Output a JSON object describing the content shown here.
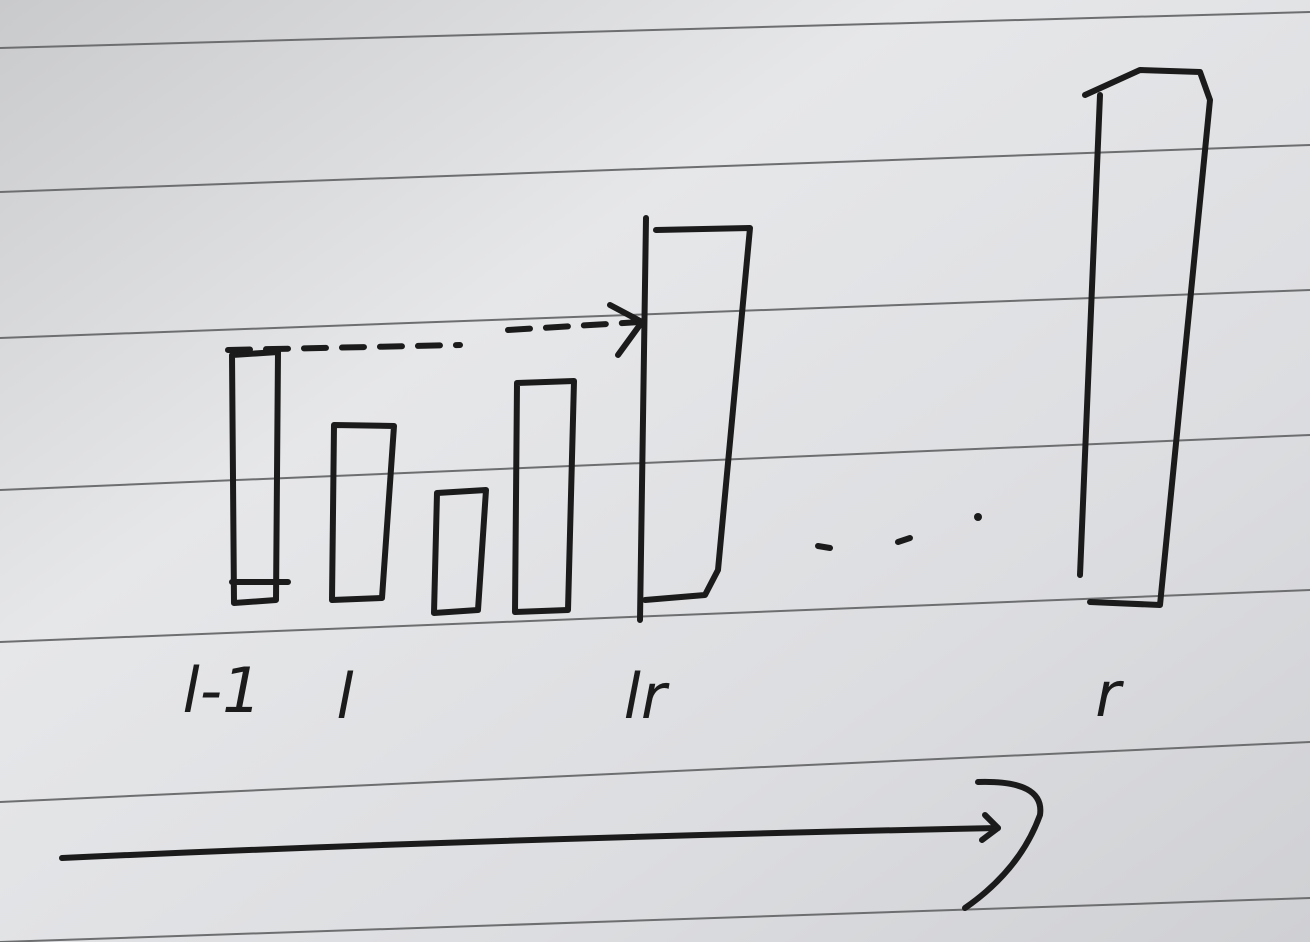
{
  "labels": [
    "l-1",
    "l",
    "lr",
    "r"
  ]
}
